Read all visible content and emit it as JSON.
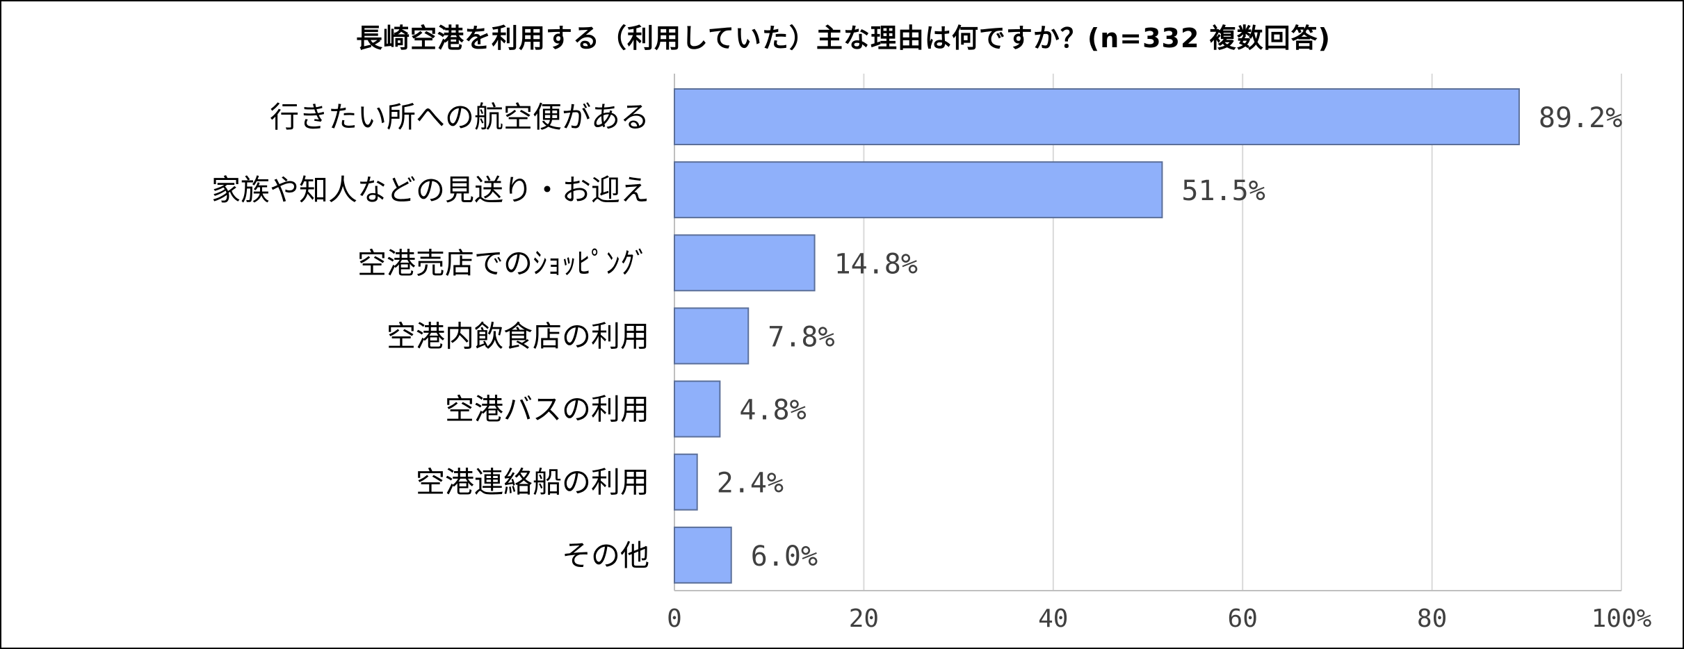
{
  "chart_data": {
    "type": "bar",
    "orientation": "horizontal",
    "title": "長崎空港を利用する（利用していた）主な理由は何ですか？(n=332 複数回答)",
    "categories": [
      "行きたい所への航空便がある",
      "家族や知人などの見送り・お迎え",
      "空港売店でのｼｮｯﾋﾟﾝｸﾞ",
      "空港内飲食店の利用",
      "空港バスの利用",
      "空港連絡船の利用",
      "その他"
    ],
    "values": [
      89.2,
      51.5,
      14.8,
      7.8,
      4.8,
      2.4,
      6.0
    ],
    "value_labels": [
      "89.2%",
      "51.5%",
      "14.8%",
      "7.8%",
      "4.8%",
      "2.4%",
      "6.0%"
    ],
    "xlim": [
      0,
      100
    ],
    "x_ticks": [
      0,
      20,
      40,
      60,
      80,
      100
    ],
    "x_tick_labels": [
      "0",
      "20",
      "40",
      "60",
      "80",
      "100%"
    ],
    "xlabel": "",
    "ylabel": "",
    "grid": "vertical",
    "legend": "none",
    "colors": {
      "bar_fill": "#8FB0FA",
      "bar_stroke": "#5B6F99",
      "grid": "#D9D9D9",
      "axis": "#BFBFBF",
      "label_text": "#404040"
    }
  }
}
